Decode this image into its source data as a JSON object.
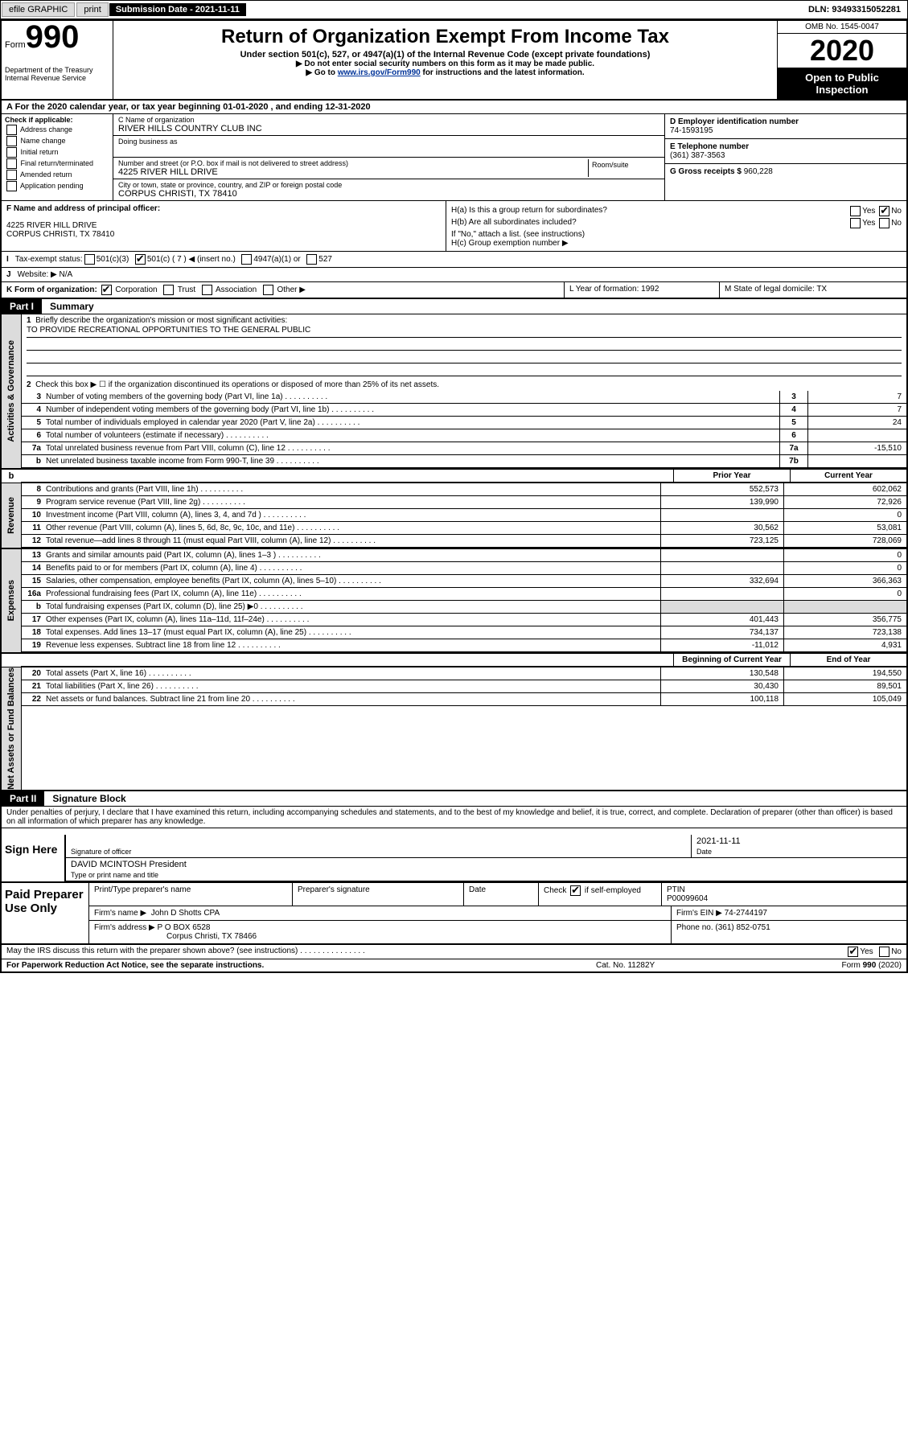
{
  "topbar": {
    "efile": "efile GRAPHIC",
    "print": "print",
    "submission_label": "Submission Date - 2021-11-11",
    "dln": "DLN: 93493315052281"
  },
  "header": {
    "form_word": "Form",
    "form_num": "990",
    "dept": "Department of the Treasury Internal Revenue Service",
    "title": "Return of Organization Exempt From Income Tax",
    "sub": "Under section 501(c), 527, or 4947(a)(1) of the Internal Revenue Code (except private foundations)",
    "note1": "Do not enter social security numbers on this form as it may be made public.",
    "note2_pre": "Go to ",
    "note2_link": "www.irs.gov/Form990",
    "note2_post": " for instructions and the latest information.",
    "omb": "OMB No. 1545-0047",
    "year": "2020",
    "open": "Open to Public Inspection"
  },
  "rowA": "For the 2020 calendar year, or tax year beginning 01-01-2020   , and ending 12-31-2020",
  "boxB": {
    "label": "Check if applicable:",
    "opts": [
      "Address change",
      "Name change",
      "Initial return",
      "Final return/terminated",
      "Amended return",
      "Application pending"
    ]
  },
  "boxC": {
    "name_label": "C Name of organization",
    "name": "RIVER HILLS COUNTRY CLUB INC",
    "dba_label": "Doing business as",
    "addr_label": "Number and street (or P.O. box if mail is not delivered to street address)",
    "addr": "4225 RIVER HILL DRIVE",
    "room_label": "Room/suite",
    "city_label": "City or town, state or province, country, and ZIP or foreign postal code",
    "city": "CORPUS CHRISTI, TX  78410"
  },
  "boxD": {
    "ein_label": "D Employer identification number",
    "ein": "74-1593195",
    "phone_label": "E Telephone number",
    "phone": "(361) 387-3563",
    "gross_label": "G Gross receipts $",
    "gross": "960,228"
  },
  "boxF": {
    "label": "F Name and address of principal officer:",
    "addr1": "4225 RIVER HILL DRIVE",
    "addr2": "CORPUS CHRISTI, TX  78410"
  },
  "boxH": {
    "a": "H(a)  Is this a group return for subordinates?",
    "b": "H(b)  Are all subordinates included?",
    "b_note": "If \"No,\" attach a list. (see instructions)",
    "c": "H(c)  Group exemption number ▶"
  },
  "rowI": {
    "label": "Tax-exempt status:",
    "opt1": "501(c)(3)",
    "opt2": "501(c) ( 7 ) ◀ (insert no.)",
    "opt3": "4947(a)(1) or",
    "opt4": "527"
  },
  "rowJ": {
    "label": "Website: ▶",
    "val": "N/A"
  },
  "rowK": {
    "label": "K Form of organization:",
    "opts": [
      "Corporation",
      "Trust",
      "Association",
      "Other ▶"
    ],
    "L": "L Year of formation: 1992",
    "M": "M State of legal domicile: TX"
  },
  "part1": {
    "header": "Part I",
    "title": "Summary",
    "l1": "Briefly describe the organization's mission or most significant activities:",
    "l1_val": "TO PROVIDE RECREATIONAL OPPORTUNITIES TO THE GENERAL PUBLIC",
    "l2": "Check this box ▶ ☐  if the organization discontinued its operations or disposed of more than 25% of its net assets.",
    "lines_gov": [
      {
        "n": "3",
        "d": "Number of voting members of the governing body (Part VI, line 1a)",
        "box": "3",
        "v": "7"
      },
      {
        "n": "4",
        "d": "Number of independent voting members of the governing body (Part VI, line 1b)",
        "box": "4",
        "v": "7"
      },
      {
        "n": "5",
        "d": "Total number of individuals employed in calendar year 2020 (Part V, line 2a)",
        "box": "5",
        "v": "24"
      },
      {
        "n": "6",
        "d": "Total number of volunteers (estimate if necessary)",
        "box": "6",
        "v": ""
      },
      {
        "n": "7a",
        "d": "Total unrelated business revenue from Part VIII, column (C), line 12",
        "box": "7a",
        "v": "-15,510"
      },
      {
        "n": "b",
        "d": "Net unrelated business taxable income from Form 990-T, line 39",
        "box": "7b",
        "v": ""
      }
    ],
    "col_prior": "Prior Year",
    "col_current": "Current Year",
    "revenue": [
      {
        "n": "8",
        "d": "Contributions and grants (Part VIII, line 1h)",
        "p": "552,573",
        "c": "602,062"
      },
      {
        "n": "9",
        "d": "Program service revenue (Part VIII, line 2g)",
        "p": "139,990",
        "c": "72,926"
      },
      {
        "n": "10",
        "d": "Investment income (Part VIII, column (A), lines 3, 4, and 7d )",
        "p": "",
        "c": "0"
      },
      {
        "n": "11",
        "d": "Other revenue (Part VIII, column (A), lines 5, 6d, 8c, 9c, 10c, and 11e)",
        "p": "30,562",
        "c": "53,081"
      },
      {
        "n": "12",
        "d": "Total revenue—add lines 8 through 11 (must equal Part VIII, column (A), line 12)",
        "p": "723,125",
        "c": "728,069"
      }
    ],
    "expenses": [
      {
        "n": "13",
        "d": "Grants and similar amounts paid (Part IX, column (A), lines 1–3 )",
        "p": "",
        "c": "0"
      },
      {
        "n": "14",
        "d": "Benefits paid to or for members (Part IX, column (A), line 4)",
        "p": "",
        "c": "0"
      },
      {
        "n": "15",
        "d": "Salaries, other compensation, employee benefits (Part IX, column (A), lines 5–10)",
        "p": "332,694",
        "c": "366,363"
      },
      {
        "n": "16a",
        "d": "Professional fundraising fees (Part IX, column (A), line 11e)",
        "p": "",
        "c": "0"
      },
      {
        "n": "b",
        "d": "Total fundraising expenses (Part IX, column (D), line 25) ▶0",
        "p": "",
        "c": "",
        "shaded": true
      },
      {
        "n": "17",
        "d": "Other expenses (Part IX, column (A), lines 11a–11d, 11f–24e)",
        "p": "401,443",
        "c": "356,775"
      },
      {
        "n": "18",
        "d": "Total expenses. Add lines 13–17 (must equal Part IX, column (A), line 25)",
        "p": "734,137",
        "c": "723,138"
      },
      {
        "n": "19",
        "d": "Revenue less expenses. Subtract line 18 from line 12",
        "p": "-11,012",
        "c": "4,931"
      }
    ],
    "col_begin": "Beginning of Current Year",
    "col_end": "End of Year",
    "netassets": [
      {
        "n": "20",
        "d": "Total assets (Part X, line 16)",
        "p": "130,548",
        "c": "194,550"
      },
      {
        "n": "21",
        "d": "Total liabilities (Part X, line 26)",
        "p": "30,430",
        "c": "89,501"
      },
      {
        "n": "22",
        "d": "Net assets or fund balances. Subtract line 21 from line 20",
        "p": "100,118",
        "c": "105,049"
      }
    ],
    "side_gov": "Activities & Governance",
    "side_rev": "Revenue",
    "side_exp": "Expenses",
    "side_net": "Net Assets or Fund Balances"
  },
  "part2": {
    "header": "Part II",
    "title": "Signature Block",
    "declaration": "Under penalties of perjury, I declare that I have examined this return, including accompanying schedules and statements, and to the best of my knowledge and belief, it is true, correct, and complete. Declaration of preparer (other than officer) is based on all information of which preparer has any knowledge."
  },
  "sign": {
    "label": "Sign Here",
    "sig_officer": "Signature of officer",
    "date": "2021-11-11",
    "date_label": "Date",
    "name": "DAVID MCINTOSH  President",
    "name_label": "Type or print name and title"
  },
  "preparer": {
    "label": "Paid Preparer Use Only",
    "print_label": "Print/Type preparer's name",
    "sig_label": "Preparer's signature",
    "date_label": "Date",
    "check_label": "Check",
    "self_emp": "if self-employed",
    "ptin_label": "PTIN",
    "ptin": "P00099604",
    "firm_name_label": "Firm's name   ▶",
    "firm_name": "John D Shotts CPA",
    "firm_ein_label": "Firm's EIN ▶",
    "firm_ein": "74-2744197",
    "firm_addr_label": "Firm's address ▶",
    "firm_addr": "P O BOX 6528",
    "firm_city": "Corpus Christi, TX  78466",
    "phone_label": "Phone no.",
    "phone": "(361) 852-0751"
  },
  "discuss": "May the IRS discuss this return with the preparer shown above? (see instructions)",
  "footer": {
    "left": "For Paperwork Reduction Act Notice, see the separate instructions.",
    "mid": "Cat. No. 11282Y",
    "right": "Form 990 (2020)"
  }
}
